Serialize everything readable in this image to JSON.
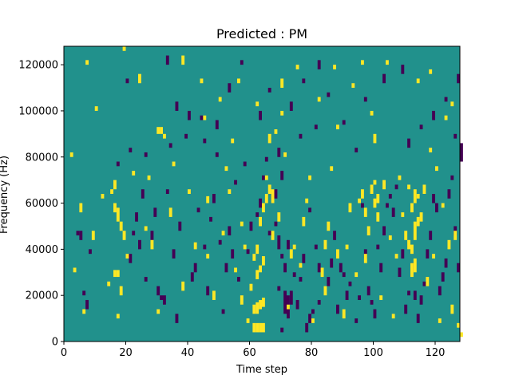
{
  "chart_data": {
    "type": "heatmap",
    "title": "Predicted : PM",
    "xlabel": "Time step",
    "ylabel": "Frequency (Hz)",
    "xlim": [
      0,
      128
    ],
    "ylim": [
      0,
      128000
    ],
    "xticks": [
      0,
      20,
      40,
      60,
      80,
      100,
      120
    ],
    "yticks": [
      0,
      20000,
      40000,
      60000,
      80000,
      100000,
      120000
    ],
    "xtick_labels": [
      "0",
      "20",
      "40",
      "60",
      "80",
      "100",
      "120"
    ],
    "ytick_labels": [
      "0",
      "20000",
      "40000",
      "60000",
      "80000",
      "100000",
      "120000"
    ],
    "n_time_steps": 128,
    "n_freq_bins": 128,
    "bin_hz": 1000,
    "colors": {
      "background": "#21918c",
      "high": "#fde725",
      "low": "#440154"
    },
    "high_cells": [
      [
        61,
        4,
        8
      ],
      [
        62,
        4,
        8
      ],
      [
        63,
        4,
        8
      ],
      [
        64,
        4,
        8
      ],
      [
        61,
        12,
        16
      ],
      [
        62,
        12,
        17
      ],
      [
        63,
        14,
        18
      ],
      [
        64,
        15,
        19
      ],
      [
        60,
        22,
        25
      ],
      [
        62,
        27,
        31
      ],
      [
        63,
        30,
        33
      ],
      [
        61,
        35,
        38
      ],
      [
        62,
        38,
        42
      ],
      [
        63,
        50,
        54
      ],
      [
        64,
        56,
        60
      ],
      [
        65,
        60,
        64
      ],
      [
        66,
        64,
        68
      ],
      [
        67,
        60,
        66
      ],
      [
        65,
        70,
        72
      ],
      [
        66,
        86,
        90
      ],
      [
        64,
        33,
        37
      ],
      [
        58,
        40,
        42
      ],
      [
        57,
        50,
        52
      ],
      [
        16,
        56,
        60
      ],
      [
        17,
        52,
        58
      ],
      [
        18,
        48,
        52
      ],
      [
        19,
        44,
        48
      ],
      [
        16,
        28,
        31
      ],
      [
        17,
        28,
        31
      ],
      [
        18,
        20,
        24
      ],
      [
        15,
        64,
        66
      ],
      [
        16,
        66,
        70
      ],
      [
        17,
        10,
        12
      ],
      [
        30,
        90,
        93
      ],
      [
        31,
        90,
        93
      ],
      [
        42,
        40,
        43
      ],
      [
        46,
        60,
        63
      ],
      [
        100,
        58,
        62
      ],
      [
        101,
        60,
        64
      ],
      [
        99,
        64,
        68
      ],
      [
        100,
        68,
        70
      ],
      [
        101,
        52,
        56
      ],
      [
        97,
        54,
        58
      ],
      [
        96,
        62,
        66
      ],
      [
        98,
        46,
        50
      ],
      [
        110,
        44,
        48
      ],
      [
        111,
        40,
        44
      ],
      [
        112,
        28,
        34
      ],
      [
        113,
        30,
        36
      ],
      [
        112,
        38,
        42
      ],
      [
        113,
        44,
        52
      ],
      [
        114,
        50,
        54
      ],
      [
        112,
        56,
        60
      ],
      [
        113,
        60,
        66
      ],
      [
        114,
        62,
        64
      ],
      [
        111,
        66,
        68
      ],
      [
        115,
        52,
        56
      ],
      [
        84,
        40,
        44
      ],
      [
        85,
        48,
        52
      ],
      [
        84,
        20,
        24
      ],
      [
        83,
        28,
        32
      ],
      [
        90,
        10,
        14
      ],
      [
        92,
        56,
        60
      ],
      [
        95,
        60,
        62
      ],
      [
        100,
        86,
        90
      ],
      [
        97,
        34,
        38
      ],
      [
        103,
        66,
        70
      ],
      [
        121,
        8,
        10
      ],
      [
        124,
        40,
        44
      ],
      [
        125,
        12,
        16
      ],
      [
        127,
        6,
        8
      ],
      [
        128,
        2,
        4
      ],
      [
        119,
        36,
        38
      ],
      [
        122,
        58,
        60
      ],
      [
        126,
        44,
        48
      ],
      [
        2,
        80,
        82
      ],
      [
        5,
        56,
        60
      ],
      [
        7,
        120,
        122
      ],
      [
        10,
        100,
        102
      ],
      [
        19,
        126,
        128
      ],
      [
        24,
        112,
        116
      ],
      [
        27,
        70,
        72
      ],
      [
        32,
        88,
        90
      ],
      [
        35,
        76,
        78
      ],
      [
        38,
        120,
        124
      ],
      [
        44,
        112,
        114
      ],
      [
        50,
        104,
        106
      ],
      [
        52,
        74,
        76
      ],
      [
        55,
        30,
        32
      ],
      [
        70,
        110,
        114
      ],
      [
        74,
        40,
        42
      ],
      [
        77,
        50,
        54
      ],
      [
        79,
        70,
        72
      ],
      [
        88,
        92,
        94
      ],
      [
        93,
        110,
        112
      ],
      [
        104,
        120,
        122
      ],
      [
        106,
        10,
        12
      ],
      [
        108,
        70,
        72
      ],
      [
        117,
        24,
        28
      ],
      [
        118,
        82,
        84
      ],
      [
        123,
        96,
        98
      ],
      [
        68,
        90,
        92
      ],
      [
        70,
        98,
        100
      ],
      [
        71,
        80,
        82
      ],
      [
        72,
        14,
        16
      ],
      [
        28,
        40,
        44
      ],
      [
        30,
        12,
        14
      ],
      [
        34,
        54,
        58
      ],
      [
        38,
        22,
        26
      ],
      [
        46,
        36,
        38
      ],
      [
        48,
        18,
        22
      ],
      [
        51,
        46,
        48
      ],
      [
        53,
        64,
        66
      ],
      [
        57,
        16,
        20
      ],
      [
        59,
        8,
        10
      ],
      [
        67,
        44,
        48
      ],
      [
        69,
        52,
        56
      ],
      [
        73,
        36,
        40
      ],
      [
        76,
        32,
        34
      ],
      [
        78,
        60,
        62
      ],
      [
        80,
        8,
        10
      ],
      [
        86,
        74,
        76
      ],
      [
        88,
        36,
        40
      ],
      [
        91,
        40,
        42
      ],
      [
        94,
        28,
        30
      ],
      [
        102,
        18,
        20
      ],
      [
        105,
        44,
        46
      ],
      [
        107,
        36,
        38
      ],
      [
        109,
        54,
        56
      ],
      [
        116,
        64,
        68
      ],
      [
        120,
        74,
        76
      ],
      [
        3,
        30,
        32
      ],
      [
        6,
        12,
        14
      ],
      [
        9,
        44,
        48
      ],
      [
        12,
        62,
        64
      ],
      [
        14,
        24,
        26
      ],
      [
        20,
        36,
        38
      ],
      [
        22,
        72,
        74
      ],
      [
        26,
        48,
        50
      ],
      [
        40,
        64,
        66
      ],
      [
        45,
        96,
        98
      ],
      [
        54,
        86,
        88
      ],
      [
        56,
        112,
        114
      ],
      [
        62,
        102,
        104
      ],
      [
        75,
        118,
        120
      ],
      [
        82,
        104,
        106
      ],
      [
        87,
        118,
        120
      ],
      [
        96,
        120,
        122
      ],
      [
        99,
        98,
        100
      ],
      [
        114,
        112,
        114
      ],
      [
        118,
        116,
        118
      ],
      [
        125,
        102,
        104
      ]
    ],
    "low_cells": [
      [
        71,
        12,
        22
      ],
      [
        72,
        10,
        20
      ],
      [
        73,
        16,
        22
      ],
      [
        70,
        4,
        6
      ],
      [
        71,
        30,
        34
      ],
      [
        72,
        40,
        44
      ],
      [
        66,
        46,
        48
      ],
      [
        68,
        50,
        52
      ],
      [
        69,
        40,
        46
      ],
      [
        70,
        36,
        38
      ],
      [
        67,
        60,
        64
      ],
      [
        68,
        62,
        66
      ],
      [
        63,
        58,
        62
      ],
      [
        64,
        70,
        72
      ],
      [
        69,
        22,
        24
      ],
      [
        74,
        28,
        30
      ],
      [
        75,
        14,
        18
      ],
      [
        76,
        26,
        28
      ],
      [
        78,
        4,
        8
      ],
      [
        79,
        8,
        12
      ],
      [
        80,
        12,
        14
      ],
      [
        82,
        30,
        34
      ],
      [
        81,
        40,
        42
      ],
      [
        85,
        24,
        28
      ],
      [
        4,
        46,
        48
      ],
      [
        5,
        44,
        48
      ],
      [
        6,
        20,
        22
      ],
      [
        7,
        14,
        18
      ],
      [
        8,
        38,
        40
      ],
      [
        21,
        34,
        38
      ],
      [
        22,
        46,
        48
      ],
      [
        23,
        52,
        56
      ],
      [
        24,
        40,
        44
      ],
      [
        25,
        62,
        66
      ],
      [
        26,
        26,
        28
      ],
      [
        28,
        44,
        48
      ],
      [
        29,
        54,
        58
      ],
      [
        30,
        20,
        24
      ],
      [
        31,
        18,
        20
      ],
      [
        32,
        16,
        20
      ],
      [
        33,
        64,
        66
      ],
      [
        35,
        36,
        40
      ],
      [
        36,
        8,
        12
      ],
      [
        37,
        48,
        52
      ],
      [
        39,
        88,
        90
      ],
      [
        40,
        96,
        100
      ],
      [
        41,
        26,
        30
      ],
      [
        42,
        30,
        34
      ],
      [
        43,
        56,
        58
      ],
      [
        45,
        40,
        42
      ],
      [
        46,
        20,
        24
      ],
      [
        47,
        52,
        54
      ],
      [
        48,
        60,
        64
      ],
      [
        49,
        80,
        82
      ],
      [
        50,
        42,
        44
      ],
      [
        51,
        12,
        14
      ],
      [
        52,
        30,
        34
      ],
      [
        53,
        46,
        50
      ],
      [
        54,
        36,
        40
      ],
      [
        55,
        68,
        70
      ],
      [
        56,
        26,
        28
      ],
      [
        58,
        76,
        78
      ],
      [
        59,
        38,
        40
      ],
      [
        60,
        48,
        52
      ],
      [
        62,
        54,
        56
      ],
      [
        65,
        78,
        80
      ],
      [
        69,
        80,
        84
      ],
      [
        70,
        70,
        74
      ],
      [
        76,
        88,
        90
      ],
      [
        77,
        34,
        38
      ],
      [
        79,
        56,
        58
      ],
      [
        82,
        16,
        18
      ],
      [
        86,
        32,
        36
      ],
      [
        87,
        44,
        48
      ],
      [
        88,
        12,
        16
      ],
      [
        89,
        30,
        34
      ],
      [
        90,
        28,
        30
      ],
      [
        91,
        18,
        22
      ],
      [
        92,
        24,
        26
      ],
      [
        94,
        8,
        10
      ],
      [
        95,
        18,
        20
      ],
      [
        96,
        58,
        60
      ],
      [
        97,
        36,
        40
      ],
      [
        98,
        20,
        24
      ],
      [
        99,
        16,
        18
      ],
      [
        100,
        10,
        14
      ],
      [
        101,
        40,
        42
      ],
      [
        102,
        30,
        34
      ],
      [
        103,
        46,
        50
      ],
      [
        104,
        58,
        60
      ],
      [
        105,
        62,
        64
      ],
      [
        106,
        54,
        58
      ],
      [
        107,
        66,
        68
      ],
      [
        108,
        28,
        32
      ],
      [
        109,
        36,
        40
      ],
      [
        110,
        12,
        16
      ],
      [
        111,
        20,
        22
      ],
      [
        112,
        30,
        34
      ],
      [
        113,
        18,
        22
      ],
      [
        114,
        8,
        12
      ],
      [
        115,
        16,
        20
      ],
      [
        116,
        24,
        26
      ],
      [
        117,
        36,
        40
      ],
      [
        118,
        44,
        48
      ],
      [
        119,
        60,
        64
      ],
      [
        120,
        56,
        60
      ],
      [
        121,
        20,
        24
      ],
      [
        122,
        26,
        30
      ],
      [
        123,
        32,
        36
      ],
      [
        124,
        62,
        66
      ],
      [
        125,
        70,
        72
      ],
      [
        126,
        46,
        50
      ],
      [
        127,
        30,
        34
      ],
      [
        128,
        78,
        86
      ],
      [
        20,
        112,
        114
      ],
      [
        21,
        82,
        84
      ],
      [
        33,
        120,
        124
      ],
      [
        36,
        100,
        104
      ],
      [
        44,
        96,
        98
      ],
      [
        45,
        86,
        88
      ],
      [
        49,
        92,
        96
      ],
      [
        53,
        108,
        112
      ],
      [
        57,
        120,
        122
      ],
      [
        66,
        108,
        110
      ],
      [
        73,
        100,
        104
      ],
      [
        77,
        112,
        114
      ],
      [
        82,
        118,
        122
      ],
      [
        85,
        106,
        108
      ],
      [
        90,
        94,
        96
      ],
      [
        94,
        82,
        84
      ],
      [
        97,
        104,
        106
      ],
      [
        103,
        112,
        116
      ],
      [
        109,
        116,
        120
      ],
      [
        111,
        84,
        88
      ],
      [
        115,
        92,
        94
      ],
      [
        119,
        96,
        100
      ],
      [
        123,
        104,
        106
      ],
      [
        126,
        88,
        90
      ],
      [
        127,
        112,
        116
      ],
      [
        17,
        76,
        78
      ],
      [
        26,
        80,
        82
      ],
      [
        34,
        84,
        86
      ],
      [
        63,
        96,
        100
      ],
      [
        81,
        92,
        94
      ]
    ]
  }
}
